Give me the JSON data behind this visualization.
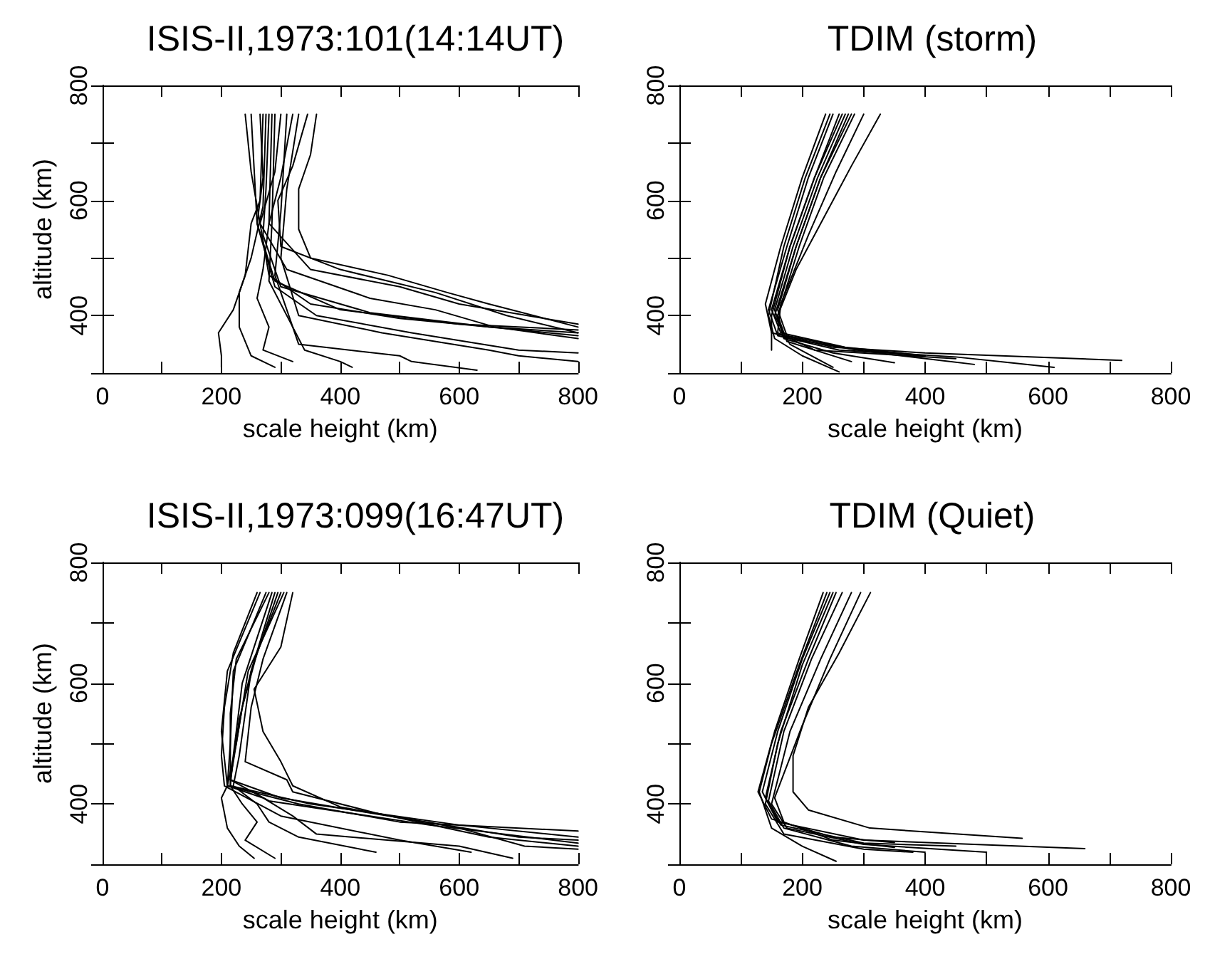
{
  "chart_data": [
    {
      "type": "line",
      "title": "ISIS-II,1973:101(14:14UT)",
      "xlabel": "scale height (km)",
      "ylabel": "altitude (km)",
      "xlim": [
        0,
        800
      ],
      "ylim": [
        300,
        800
      ],
      "xticks": [
        0,
        {
          "value": 100,
          "label": null
        },
        200,
        {
          "value": 300,
          "label": null
        },
        400,
        {
          "value": 500,
          "label": null
        },
        600,
        {
          "value": 700,
          "label": null
        },
        800
      ],
      "yticks": [
        {
          "value": 300,
          "label": null
        },
        400,
        {
          "value": 500,
          "label": null
        },
        600,
        {
          "value": 700,
          "label": null
        },
        800
      ],
      "grid": false,
      "marker": "none",
      "line_style": "solid",
      "series": [
        {
          "color": "#000000",
          "x": [
            240,
            250,
            265,
            280,
            350,
            500,
            650,
            800
          ],
          "values": [
            750,
            650,
            560,
            470,
            420,
            395,
            380,
            370
          ]
        },
        {
          "color": "#000000",
          "x": [
            265,
            270,
            260,
            290,
            400,
            600,
            800
          ],
          "values": [
            750,
            640,
            560,
            460,
            410,
            385,
            375
          ]
        },
        {
          "color": "#000000",
          "x": [
            280,
            275,
            270,
            300,
            450,
            650,
            800
          ],
          "values": [
            750,
            620,
            540,
            450,
            405,
            380,
            365
          ]
        },
        {
          "color": "#000000",
          "x": [
            300,
            290,
            265,
            310,
            450,
            560,
            660,
            800
          ],
          "values": [
            750,
            650,
            560,
            480,
            430,
            410,
            380,
            360
          ]
        },
        {
          "color": "#000000",
          "x": [
            320,
            300,
            280,
            350,
            500,
            600,
            800
          ],
          "values": [
            750,
            640,
            560,
            480,
            450,
            420,
            385
          ]
        },
        {
          "color": "#000000",
          "x": [
            345,
            320,
            295,
            300,
            400,
            560,
            680,
            800
          ],
          "values": [
            750,
            660,
            600,
            520,
            480,
            440,
            400,
            370
          ]
        },
        {
          "color": "#000000",
          "x": [
            360,
            350,
            330,
            330,
            350,
            480,
            580,
            650,
            800
          ],
          "values": [
            750,
            680,
            620,
            550,
            500,
            470,
            440,
            420,
            380
          ]
        },
        {
          "color": "#000000",
          "x": [
            270,
            265,
            250,
            240,
            220,
            195,
            200,
            200
          ],
          "values": [
            750,
            600,
            560,
            470,
            410,
            370,
            330,
            310
          ]
        },
        {
          "color": "#000000",
          "x": [
            275,
            270,
            250,
            230,
            230,
            250,
            290
          ],
          "values": [
            750,
            590,
            500,
            440,
            380,
            330,
            310
          ]
        },
        {
          "color": "#000000",
          "x": [
            285,
            280,
            270,
            260,
            280,
            270,
            320
          ],
          "values": [
            750,
            560,
            480,
            430,
            380,
            340,
            320
          ]
        },
        {
          "color": "#000000",
          "x": [
            290,
            285,
            280,
            320,
            340,
            400,
            420
          ],
          "values": [
            750,
            560,
            460,
            380,
            340,
            320,
            310
          ]
        },
        {
          "color": "#000000",
          "x": [
            310,
            300,
            290,
            330,
            500,
            520,
            630
          ],
          "values": [
            750,
            580,
            470,
            350,
            330,
            320,
            305
          ]
        },
        {
          "color": "#000000",
          "x": [
            330,
            310,
            300,
            330,
            470,
            650,
            700,
            800
          ],
          "values": [
            750,
            620,
            500,
            400,
            370,
            340,
            330,
            320
          ]
        },
        {
          "color": "#000000",
          "x": [
            250,
            260,
            290,
            360,
            520,
            700,
            800
          ],
          "values": [
            750,
            560,
            450,
            400,
            370,
            340,
            335
          ]
        }
      ]
    },
    {
      "type": "line",
      "title": "TDIM (storm)",
      "xlabel": "scale height (km)",
      "xlim": [
        0,
        800
      ],
      "ylim": [
        300,
        800
      ],
      "xticks": [
        0,
        {
          "value": 100,
          "label": null
        },
        200,
        {
          "value": 300,
          "label": null
        },
        400,
        {
          "value": 500,
          "label": null
        },
        600,
        {
          "value": 700,
          "label": null
        },
        800
      ],
      "yticks": [
        {
          "value": 300,
          "label": null
        },
        400,
        {
          "value": 500,
          "label": null
        },
        600,
        {
          "value": 700,
          "label": null
        },
        800
      ],
      "grid": false,
      "marker": "none",
      "line_style": "solid",
      "series": [
        {
          "color": "#000000",
          "x": [
            238,
            200,
            165,
            140,
            150,
            250,
            400,
            720
          ],
          "values": [
            750,
            640,
            520,
            420,
            370,
            345,
            335,
            322
          ]
        },
        {
          "color": "#000000",
          "x": [
            250,
            210,
            175,
            145,
            160,
            260,
            450,
            610
          ],
          "values": [
            750,
            640,
            520,
            410,
            365,
            340,
            328,
            310
          ]
        },
        {
          "color": "#000000",
          "x": [
            260,
            220,
            180,
            150,
            165,
            270,
            400
          ],
          "values": [
            750,
            640,
            520,
            410,
            370,
            345,
            330
          ]
        },
        {
          "color": "#000000",
          "x": [
            270,
            225,
            185,
            155,
            170,
            300,
            480
          ],
          "values": [
            750,
            640,
            520,
            410,
            362,
            338,
            315
          ]
        },
        {
          "color": "#000000",
          "x": [
            275,
            230,
            190,
            160,
            175,
            280,
            390
          ],
          "values": [
            750,
            640,
            520,
            410,
            365,
            342,
            330
          ]
        },
        {
          "color": "#000000",
          "x": [
            285,
            235,
            195,
            160,
            170,
            250,
            350
          ],
          "values": [
            750,
            640,
            520,
            400,
            360,
            335,
            318
          ]
        },
        {
          "color": "#000000",
          "x": [
            300,
            255,
            210,
            165,
            160,
            220,
            450
          ],
          "values": [
            750,
            650,
            540,
            420,
            370,
            340,
            325
          ]
        },
        {
          "color": "#000000",
          "x": [
            327,
            280,
            240,
            190,
            160,
            175,
            280
          ],
          "values": [
            750,
            660,
            580,
            480,
            400,
            355,
            320
          ]
        },
        {
          "color": "#000000",
          "x": [
            245,
            205,
            170,
            145,
            155,
            200,
            260
          ],
          "values": [
            750,
            640,
            520,
            400,
            360,
            330,
            302
          ]
        },
        {
          "color": "#000000",
          "x": [
            265,
            220,
            180,
            150,
            150
          ],
          "values": [
            750,
            640,
            520,
            400,
            340
          ]
        },
        {
          "color": "#000000",
          "x": [
            280,
            230,
            190,
            155,
            180,
            250
          ],
          "values": [
            750,
            640,
            520,
            400,
            350,
            310
          ]
        }
      ]
    },
    {
      "type": "line",
      "title": "ISIS-II,1973:099(16:47UT)",
      "xlabel": "scale height (km)",
      "ylabel": "altitude (km)",
      "xlim": [
        0,
        800
      ],
      "ylim": [
        300,
        800
      ],
      "xticks": [
        0,
        {
          "value": 100,
          "label": null
        },
        200,
        {
          "value": 300,
          "label": null
        },
        400,
        {
          "value": 500,
          "label": null
        },
        600,
        {
          "value": 700,
          "label": null
        },
        800
      ],
      "yticks": [
        {
          "value": 300,
          "label": null
        },
        400,
        {
          "value": 500,
          "label": null
        },
        600,
        {
          "value": 700,
          "label": null
        },
        800
      ],
      "grid": false,
      "marker": "none",
      "line_style": "solid",
      "series": [
        {
          "color": "#000000",
          "x": [
            265,
            210,
            200,
            210,
            330,
            500,
            800
          ],
          "values": [
            750,
            620,
            520,
            430,
            400,
            370,
            355
          ]
        },
        {
          "color": "#000000",
          "x": [
            280,
            225,
            215,
            215,
            350,
            600,
            800
          ],
          "values": [
            750,
            640,
            550,
            430,
            400,
            365,
            345
          ]
        },
        {
          "color": "#000000",
          "x": [
            290,
            250,
            230,
            215,
            300,
            420,
            700,
            800
          ],
          "values": [
            750,
            620,
            540,
            440,
            410,
            390,
            345,
            340
          ]
        },
        {
          "color": "#000000",
          "x": [
            300,
            260,
            235,
            215,
            280,
            550,
            800
          ],
          "values": [
            750,
            650,
            560,
            440,
            405,
            365,
            335
          ]
        },
        {
          "color": "#000000",
          "x": [
            310,
            270,
            250,
            240,
            310,
            320,
            460,
            650,
            800
          ],
          "values": [
            750,
            640,
            560,
            470,
            440,
            420,
            385,
            345,
            330
          ]
        },
        {
          "color": "#000000",
          "x": [
            320,
            300,
            255,
            270,
            300,
            320,
            400,
            600,
            710,
            800
          ],
          "values": [
            750,
            660,
            590,
            520,
            470,
            430,
            395,
            360,
            330,
            325
          ]
        },
        {
          "color": "#000000",
          "x": [
            305,
            245,
            225,
            210,
            200,
            210,
            230,
            255
          ],
          "values": [
            750,
            620,
            500,
            430,
            410,
            360,
            330,
            310
          ]
        },
        {
          "color": "#000000",
          "x": [
            285,
            235,
            220,
            215,
            235,
            260,
            240,
            290
          ],
          "values": [
            750,
            600,
            480,
            430,
            400,
            370,
            340,
            310
          ]
        },
        {
          "color": "#000000",
          "x": [
            295,
            250,
            230,
            220,
            260,
            280,
            330,
            460
          ],
          "values": [
            750,
            620,
            480,
            430,
            400,
            370,
            345,
            320
          ]
        },
        {
          "color": "#000000",
          "x": [
            275,
            220,
            215,
            210,
            270,
            320,
            360,
            600,
            690
          ],
          "values": [
            750,
            620,
            500,
            430,
            410,
            380,
            350,
            330,
            310
          ]
        },
        {
          "color": "#000000",
          "x": [
            260,
            220,
            205,
            200,
            205,
            300,
            500,
            620
          ],
          "values": [
            750,
            650,
            560,
            480,
            430,
            380,
            340,
            320
          ]
        }
      ]
    },
    {
      "type": "line",
      "title": "TDIM (Quiet)",
      "xlabel": "scale height (km)",
      "xlim": [
        0,
        800
      ],
      "ylim": [
        300,
        800
      ],
      "xticks": [
        0,
        {
          "value": 100,
          "label": null
        },
        200,
        {
          "value": 300,
          "label": null
        },
        400,
        {
          "value": 500,
          "label": null
        },
        600,
        {
          "value": 700,
          "label": null
        },
        800
      ],
      "yticks": [
        {
          "value": 300,
          "label": null
        },
        400,
        {
          "value": 500,
          "label": null
        },
        600,
        {
          "value": 700,
          "label": null
        },
        800
      ],
      "grid": false,
      "marker": "none",
      "line_style": "solid",
      "series": [
        {
          "color": "#000000",
          "x": [
            234,
            195,
            155,
            128,
            150,
            250,
            350
          ],
          "values": [
            750,
            640,
            520,
            420,
            375,
            345,
            336
          ]
        },
        {
          "color": "#000000",
          "x": [
            245,
            200,
            160,
            135,
            160,
            300,
            660
          ],
          "values": [
            750,
            640,
            520,
            420,
            370,
            340,
            326
          ]
        },
        {
          "color": "#000000",
          "x": [
            255,
            210,
            165,
            140,
            165,
            300,
            450
          ],
          "values": [
            750,
            640,
            520,
            410,
            365,
            335,
            330
          ]
        },
        {
          "color": "#000000",
          "x": [
            265,
            215,
            170,
            145,
            170,
            280,
            400
          ],
          "values": [
            750,
            640,
            520,
            405,
            360,
            330,
            320
          ]
        },
        {
          "color": "#000000",
          "x": [
            280,
            230,
            180,
            150,
            175,
            300,
            500
          ],
          "values": [
            750,
            640,
            520,
            400,
            360,
            333,
            320
          ]
        },
        {
          "color": "#000000",
          "x": [
            295,
            245,
            200,
            155,
            170,
            250,
            350
          ],
          "values": [
            750,
            640,
            530,
            410,
            370,
            340,
            328
          ]
        },
        {
          "color": "#000000",
          "x": [
            311,
            260,
            210,
            185,
            185,
            210,
            310,
            558
          ],
          "values": [
            750,
            650,
            560,
            480,
            420,
            390,
            360,
            343
          ]
        },
        {
          "color": "#000000",
          "x": [
            240,
            195,
            150,
            130,
            150,
            200,
            255
          ],
          "values": [
            750,
            630,
            500,
            420,
            360,
            330,
            305
          ]
        },
        {
          "color": "#000000",
          "x": [
            250,
            200,
            160,
            140,
            170,
            300,
            380
          ],
          "values": [
            750,
            630,
            500,
            400,
            350,
            325,
            320
          ]
        }
      ]
    }
  ]
}
